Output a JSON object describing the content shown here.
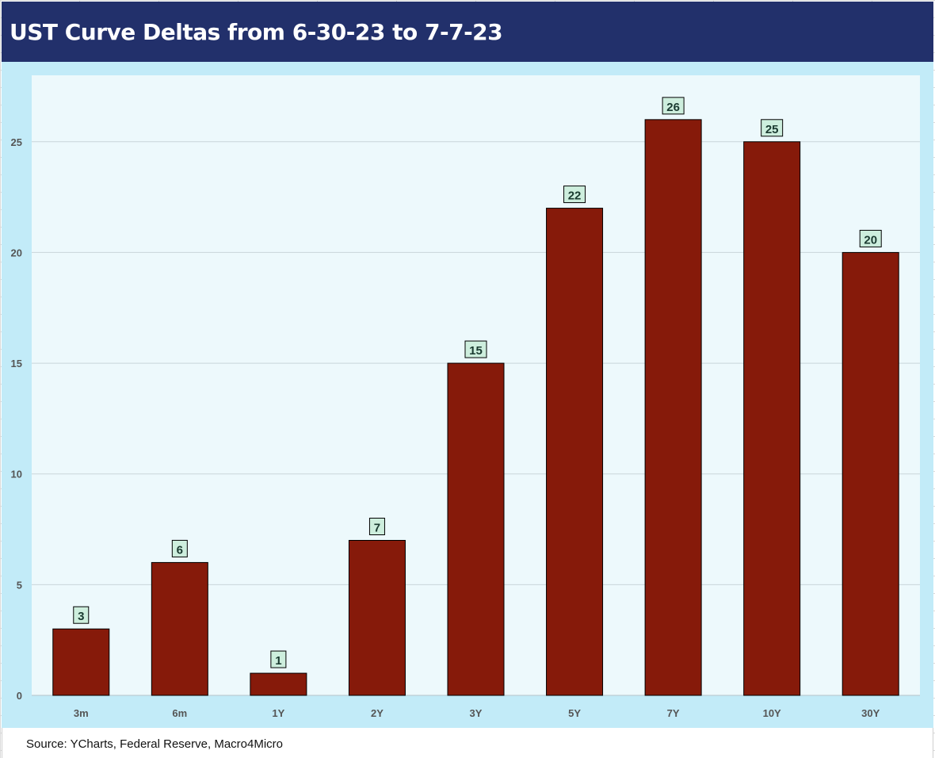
{
  "header": {
    "title": "UST Curve Deltas from 6-30-23 to 7-7-23"
  },
  "footer": {
    "source": "Source: YCharts, Federal Reserve, Macro4Micro"
  },
  "colors": {
    "title_bg": "#22306b",
    "frame_bg": "#c2ebf8",
    "plot_bg": "#edf9fc",
    "bar": "#861a0a",
    "label_bg": "#cdeedd"
  },
  "chart_data": {
    "type": "bar",
    "title": "UST Curve Deltas from 6-30-23 to 7-7-23",
    "categories": [
      "3m",
      "6m",
      "1Y",
      "2Y",
      "3Y",
      "5Y",
      "7Y",
      "10Y",
      "30Y"
    ],
    "values": [
      3,
      6,
      1,
      7,
      15,
      22,
      26,
      25,
      20
    ],
    "ylim": [
      0,
      28
    ],
    "yticks": [
      0,
      5,
      10,
      15,
      20,
      25
    ],
    "grid": true,
    "data_labels": true,
    "legend": "none"
  }
}
